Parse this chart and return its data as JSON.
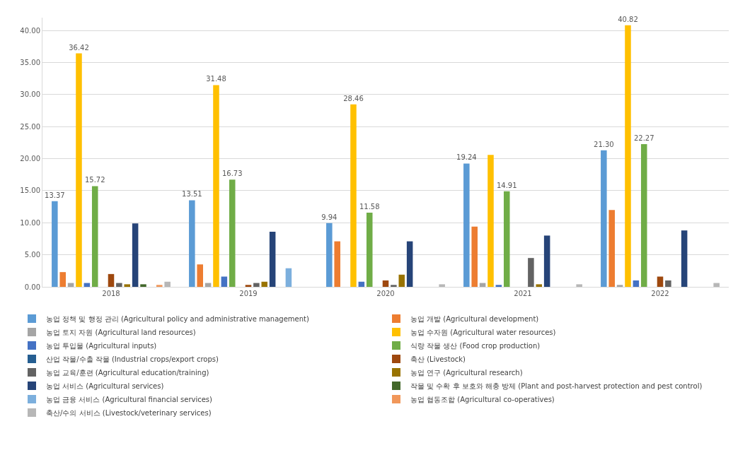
{
  "chart_data": {
    "type": "bar",
    "categories": [
      "2018",
      "2019",
      "2020",
      "2021",
      "2022"
    ],
    "ylim": [
      0,
      42
    ],
    "yticks": [
      {
        "value": 0,
        "label": "0.00"
      },
      {
        "value": 5,
        "label": "5.00"
      },
      {
        "value": 10,
        "label": "10.00"
      },
      {
        "value": 15,
        "label": "15.00"
      },
      {
        "value": 20,
        "label": "20.00"
      },
      {
        "value": 25,
        "label": "25.00"
      },
      {
        "value": 30,
        "label": "30.00"
      },
      {
        "value": 35,
        "label": "35.00"
      },
      {
        "value": 40,
        "label": "40.00"
      }
    ],
    "grid": "y",
    "legend": "bottom",
    "series": [
      {
        "name": "농업 정책 및 행정 관리 (Agricultural policy and administrative management)",
        "color": "#5b9bd5",
        "values": [
          13.37,
          13.51,
          9.94,
          19.24,
          21.3
        ],
        "value_labels": [
          "13.37",
          "13.51",
          "9.94",
          "19.24",
          "21.30"
        ]
      },
      {
        "name": "농업 개발 (Agricultural development)",
        "color": "#ed7d31",
        "values": [
          2.3,
          3.5,
          7.1,
          9.4,
          12.0
        ]
      },
      {
        "name": "농업 토지 자원 (Agricultural land resources)",
        "color": "#a5a5a5",
        "values": [
          0.6,
          0.6,
          null,
          0.6,
          0.3
        ]
      },
      {
        "name": "농업 수자원 (Agricultural water resources)",
        "color": "#ffc000",
        "values": [
          36.42,
          31.48,
          28.46,
          20.6,
          40.82
        ],
        "value_labels": [
          "36.42",
          "31.48",
          "28.46",
          null,
          "40.82"
        ]
      },
      {
        "name": "농업 투입물 (Agricultural inputs)",
        "color": "#4472c4",
        "values": [
          0.6,
          1.6,
          0.8,
          0.3,
          1.0
        ]
      },
      {
        "name": "식량 작물 생산 (Food crop production)",
        "color": "#70ad47",
        "values": [
          15.72,
          16.73,
          11.58,
          14.91,
          22.27
        ],
        "value_labels": [
          "15.72",
          "16.73",
          "11.58",
          "14.91",
          "22.27"
        ]
      },
      {
        "name": "산업 작물/수출 작물 (Industrial crops/export crops)",
        "color": "#255e91",
        "values": [
          null,
          null,
          null,
          null,
          null
        ]
      },
      {
        "name": "축산 (Livestock)",
        "color": "#9e480e",
        "values": [
          2.0,
          0.3,
          1.0,
          null,
          1.6
        ]
      },
      {
        "name": "농업 교육/훈련 (Agricultural education/training)",
        "color": "#636363",
        "values": [
          0.6,
          0.6,
          0.3,
          4.5,
          1.0
        ]
      },
      {
        "name": "농업 연구 (Agricultural research)",
        "color": "#997300",
        "values": [
          0.4,
          0.8,
          1.9,
          0.4,
          null
        ]
      },
      {
        "name": "농업 서비스 (Agricultural services)",
        "color": "#264478",
        "values": [
          9.9,
          8.6,
          7.1,
          8.0,
          8.8
        ]
      },
      {
        "name": "작물 및 수확 후 보호와 해충 방제 (Plant and post-harvest protection and pest control)",
        "color": "#43682b",
        "values": [
          0.4,
          null,
          null,
          null,
          null
        ]
      },
      {
        "name": "농업 금융 서비스 (Agricultural financial services)",
        "color": "#7cafdd",
        "values": [
          null,
          2.9,
          null,
          null,
          null
        ]
      },
      {
        "name": "농업 협동조합 (Agricultural co-operatives)",
        "color": "#f1975a",
        "values": [
          0.3,
          null,
          null,
          null,
          null
        ]
      },
      {
        "name": "축산/수의 서비스 (Livestock/veterinary services)",
        "color": "#b7b7b7",
        "values": [
          0.8,
          null,
          0.4,
          0.4,
          0.6
        ]
      }
    ]
  }
}
